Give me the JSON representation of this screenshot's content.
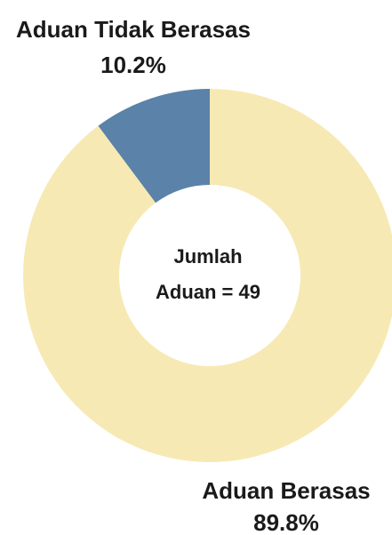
{
  "chart_data": {
    "type": "pie",
    "variant": "donut",
    "slices": [
      {
        "label": "Aduan Tidak Berasas",
        "value": 10.2,
        "value_label": "10.2%",
        "color": "#5b82a8"
      },
      {
        "label": "Aduan Berasas",
        "value": 89.8,
        "value_label": "89.8%",
        "color": "#f7e9b3"
      }
    ],
    "center_text": [
      "Jumlah",
      "Aduan = 49"
    ],
    "legend": "none"
  }
}
